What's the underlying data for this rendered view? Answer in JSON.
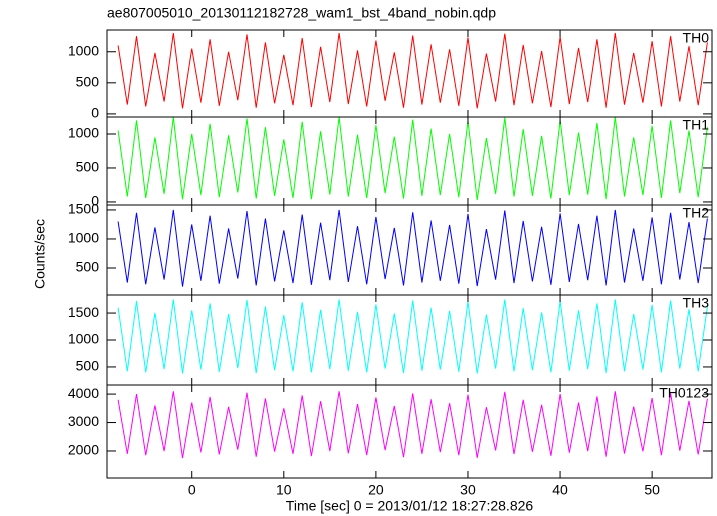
{
  "chart_data": [
    {
      "type": "line",
      "title": "ae807005010_20130112182728_wam1_bst_4band_nobin.qdp",
      "x": [
        -8,
        -7,
        -6,
        -5,
        -4,
        -3,
        -2,
        -1,
        0,
        1,
        2,
        3,
        4,
        5,
        6,
        7,
        8,
        9,
        10,
        11,
        12,
        13,
        14,
        15,
        16,
        17,
        18,
        19,
        20,
        21,
        22,
        23,
        24,
        25,
        26,
        27,
        28,
        29,
        30,
        31,
        32,
        33,
        34,
        35,
        36,
        37,
        38,
        39,
        40,
        41,
        42,
        43,
        44,
        45,
        46,
        47,
        48,
        49,
        50,
        51,
        52,
        53,
        54,
        55,
        56
      ],
      "series": [
        {
          "name": "TH0",
          "color": "#ff0000",
          "values": [
            1100,
            150,
            1250,
            120,
            980,
            200,
            1300,
            90,
            1050,
            180,
            1200,
            130,
            1000,
            220,
            1280,
            100,
            1150,
            170,
            950,
            140,
            1220,
            110,
            1080,
            190,
            1300,
            160,
            1020,
            120,
            1180,
            210,
            990,
            100,
            1260,
            150,
            1120,
            180,
            1040,
            130,
            1230,
            90,
            970,
            200,
            1290,
            140,
            1110,
            170,
            1010,
            110,
            1240,
            160,
            1060,
            190,
            1200,
            100,
            1300,
            150,
            980,
            180,
            1170,
            120,
            1250,
            200,
            1090,
            140,
            1150
          ]
        }
      ],
      "xlim": [
        -9.2,
        56.5
      ],
      "xticks": [
        0,
        10,
        20,
        30,
        40,
        50
      ],
      "ylim": [
        -50,
        1350
      ],
      "yticks": [
        0,
        500,
        1000
      ]
    },
    {
      "type": "line",
      "x": [
        -8,
        -7,
        -6,
        -5,
        -4,
        -3,
        -2,
        -1,
        0,
        1,
        2,
        3,
        4,
        5,
        6,
        7,
        8,
        9,
        10,
        11,
        12,
        13,
        14,
        15,
        16,
        17,
        18,
        19,
        20,
        21,
        22,
        23,
        24,
        25,
        26,
        27,
        28,
        29,
        30,
        31,
        32,
        33,
        34,
        35,
        36,
        37,
        38,
        39,
        40,
        41,
        42,
        43,
        44,
        45,
        46,
        47,
        48,
        49,
        50,
        51,
        52,
        53,
        54,
        55,
        56
      ],
      "series": [
        {
          "name": "TH1",
          "color": "#00ff00",
          "values": [
            1050,
            80,
            1200,
            60,
            950,
            120,
            1250,
            40,
            1000,
            100,
            1150,
            70,
            980,
            140,
            1230,
            50,
            1100,
            90,
            920,
            60,
            1180,
            40,
            1040,
            110,
            1250,
            80,
            990,
            60,
            1130,
            130,
            960,
            50,
            1210,
            90,
            1080,
            100,
            1000,
            70,
            1190,
            30,
            940,
            120,
            1240,
            80,
            1070,
            90,
            970,
            50,
            1200,
            100,
            1020,
            110,
            1160,
            40,
            1250,
            80,
            950,
            100,
            1120,
            60,
            1200,
            130,
            1050,
            70,
            1100
          ]
        }
      ],
      "xlim": [
        -9.2,
        56.5
      ],
      "xticks": [
        0,
        10,
        20,
        30,
        40,
        50
      ],
      "ylim": [
        -45,
        1250
      ],
      "yticks": [
        0,
        500,
        1000
      ]
    },
    {
      "type": "line",
      "y_label": "Counts/sec",
      "x": [
        -8,
        -7,
        -6,
        -5,
        -4,
        -3,
        -2,
        -1,
        0,
        1,
        2,
        3,
        4,
        5,
        6,
        7,
        8,
        9,
        10,
        11,
        12,
        13,
        14,
        15,
        16,
        17,
        18,
        19,
        20,
        21,
        22,
        23,
        24,
        25,
        26,
        27,
        28,
        29,
        30,
        31,
        32,
        33,
        34,
        35,
        36,
        37,
        38,
        39,
        40,
        41,
        42,
        43,
        44,
        45,
        46,
        47,
        48,
        49,
        50,
        51,
        52,
        53,
        54,
        55,
        56
      ],
      "series": [
        {
          "name": "TH2",
          "color": "#0000ff",
          "values": [
            1300,
            250,
            1450,
            220,
            1200,
            300,
            1500,
            180,
            1250,
            280,
            1400,
            230,
            1180,
            320,
            1480,
            200,
            1350,
            270,
            1150,
            240,
            1420,
            210,
            1280,
            290,
            1500,
            260,
            1220,
            220,
            1380,
            310,
            1190,
            200,
            1460,
            250,
            1320,
            280,
            1240,
            230,
            1430,
            190,
            1170,
            300,
            1490,
            240,
            1310,
            270,
            1210,
            210,
            1440,
            260,
            1260,
            290,
            1400,
            200,
            1500,
            250,
            1180,
            280,
            1370,
            220,
            1450,
            300,
            1290,
            240,
            1350
          ]
        }
      ],
      "xlim": [
        -9.2,
        56.5
      ],
      "xticks": [
        0,
        10,
        20,
        30,
        40,
        50
      ],
      "ylim": [
        35,
        1585
      ],
      "yticks": [
        500,
        1000,
        1500
      ]
    },
    {
      "type": "line",
      "x": [
        -8,
        -7,
        -6,
        -5,
        -4,
        -3,
        -2,
        -1,
        0,
        1,
        2,
        3,
        4,
        5,
        6,
        7,
        8,
        9,
        10,
        11,
        12,
        13,
        14,
        15,
        16,
        17,
        18,
        19,
        20,
        21,
        22,
        23,
        24,
        25,
        26,
        27,
        28,
        29,
        30,
        31,
        32,
        33,
        34,
        35,
        36,
        37,
        38,
        39,
        40,
        41,
        42,
        43,
        44,
        45,
        46,
        47,
        48,
        49,
        50,
        51,
        52,
        53,
        54,
        55,
        56
      ],
      "series": [
        {
          "name": "TH3",
          "color": "#00ffff",
          "values": [
            1600,
            420,
            1720,
            400,
            1500,
            460,
            1750,
            380,
            1550,
            450,
            1680,
            410,
            1480,
            480,
            1740,
            390,
            1620,
            440,
            1460,
            420,
            1700,
            400,
            1560,
            460,
            1750,
            430,
            1520,
            400,
            1660,
            470,
            1490,
            390,
            1730,
            430,
            1600,
            450,
            1540,
            410,
            1710,
            380,
            1470,
            470,
            1750,
            420,
            1590,
            440,
            1510,
            400,
            1720,
            430,
            1550,
            460,
            1680,
            390,
            1750,
            420,
            1480,
            450,
            1650,
            400,
            1730,
            470,
            1570,
            420,
            1620
          ]
        }
      ],
      "xlim": [
        -9.2,
        56.5
      ],
      "xticks": [
        0,
        10,
        20,
        30,
        40,
        50
      ],
      "ylim": [
        165,
        1835
      ],
      "yticks": [
        500,
        1000,
        1500
      ]
    },
    {
      "type": "line",
      "x_label": "Time [sec] 0 = 2013/01/12 18:27:28.826",
      "x": [
        -8,
        -7,
        -6,
        -5,
        -4,
        -3,
        -2,
        -1,
        0,
        1,
        2,
        3,
        4,
        5,
        6,
        7,
        8,
        9,
        10,
        11,
        12,
        13,
        14,
        15,
        16,
        17,
        18,
        19,
        20,
        21,
        22,
        23,
        24,
        25,
        26,
        27,
        28,
        29,
        30,
        31,
        32,
        33,
        34,
        35,
        36,
        37,
        38,
        39,
        40,
        41,
        42,
        43,
        44,
        45,
        46,
        47,
        48,
        49,
        50,
        51,
        52,
        53,
        54,
        55,
        56
      ],
      "series": [
        {
          "name": "TH0123",
          "color": "#ff00ff",
          "values": [
            3800,
            1900,
            4000,
            1850,
            3600,
            2000,
            4100,
            1750,
            3700,
            1950,
            3900,
            1880,
            3550,
            2050,
            4050,
            1800,
            3850,
            1980,
            3500,
            1900,
            3950,
            1820,
            3750,
            2000,
            4100,
            1920,
            3650,
            1860,
            3880,
            2030,
            3580,
            1780,
            4020,
            1900,
            3820,
            1960,
            3680,
            1850,
            3980,
            1760,
            3540,
            2020,
            4080,
            1890,
            3800,
            1970,
            3620,
            1830,
            4000,
            1940,
            3700,
            2000,
            3920,
            1800,
            4100,
            1910,
            3560,
            1990,
            3860,
            1850,
            4030,
            2010,
            3760,
            1880,
            3840
          ]
        }
      ],
      "xlim": [
        -9.2,
        56.5
      ],
      "xticks": [
        0,
        10,
        20,
        30,
        40,
        50
      ],
      "ylim": [
        1050,
        4320
      ],
      "yticks": [
        2000,
        3000,
        4000
      ]
    }
  ]
}
